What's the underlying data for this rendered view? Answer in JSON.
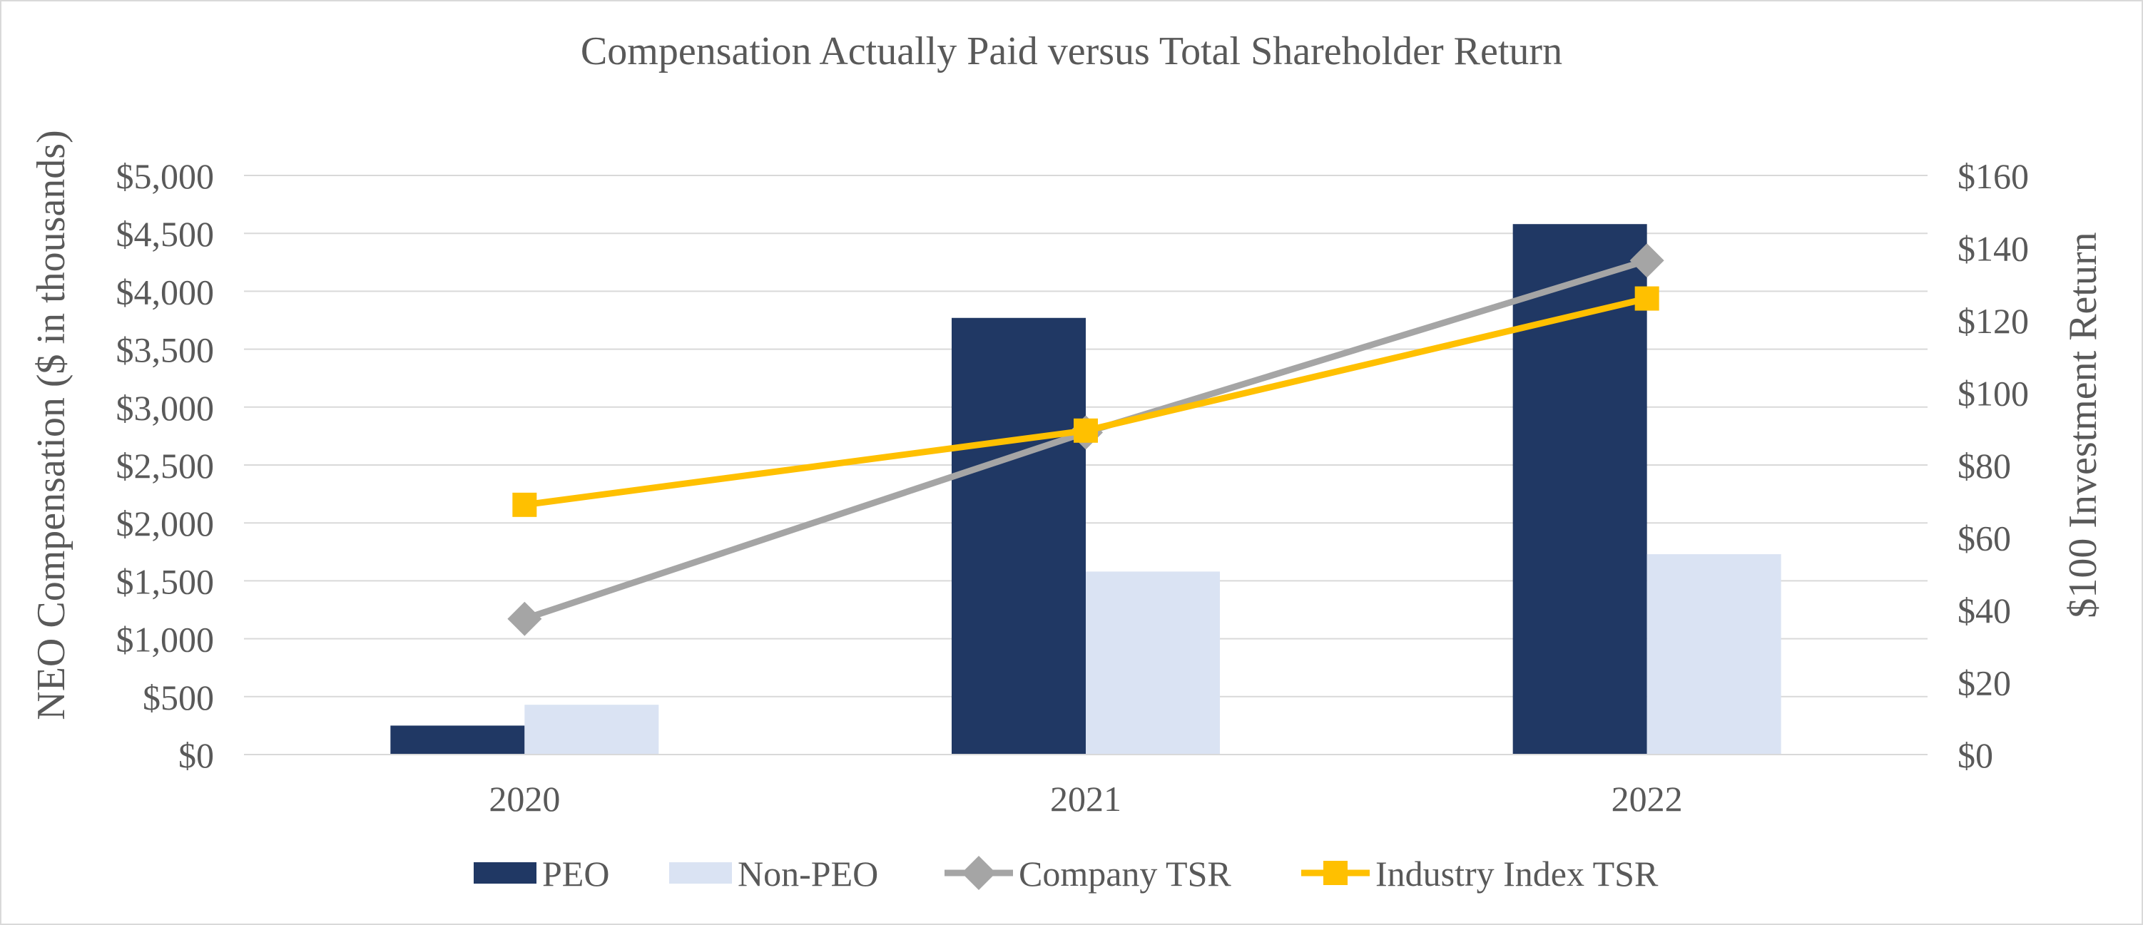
{
  "chart_data": {
    "type": "bar",
    "title": "Compensation Actually Paid versus Total Shareholder Return",
    "categories": [
      "2020",
      "2021",
      "2022"
    ],
    "ylabel": "NEO Compensation ($ in thousands)",
    "ylabel_right": "$100 Investment Return",
    "ylim": [
      0,
      5000
    ],
    "ylim_right": [
      0,
      160
    ],
    "yticks": [
      0,
      500,
      1000,
      1500,
      2000,
      2500,
      3000,
      3500,
      4000,
      4500,
      5000
    ],
    "ytick_labels": [
      "$0",
      "$500",
      "$1,000",
      "$1,500",
      "$2,000",
      "$2,500",
      "$3,000",
      "$3,500",
      "$4,000",
      "$4,500",
      "$5,000"
    ],
    "yticks_right": [
      0,
      20,
      40,
      60,
      80,
      100,
      120,
      140,
      160
    ],
    "ytick_labels_right": [
      "$0",
      "$20",
      "$40",
      "$60",
      "$80",
      "$100",
      "$120",
      "$140",
      "$160"
    ],
    "grid": true,
    "legend_position": "bottom",
    "series": [
      {
        "name": "PEO",
        "kind": "bar",
        "axis": "left",
        "color": "#203864",
        "values": [
          250,
          3770,
          4580
        ]
      },
      {
        "name": "Non-PEO",
        "kind": "bar",
        "axis": "left",
        "color": "#dae3f3",
        "values": [
          430,
          1580,
          1730
        ]
      },
      {
        "name": "Company TSR",
        "kind": "line",
        "marker": "diamond",
        "axis": "right",
        "color": "#a5a5a5",
        "values": [
          37.5,
          89,
          136.5
        ]
      },
      {
        "name": "Industry Index TSR",
        "kind": "line",
        "marker": "square",
        "axis": "right",
        "color": "#ffc000",
        "values": [
          69,
          89.5,
          126
        ]
      }
    ]
  }
}
